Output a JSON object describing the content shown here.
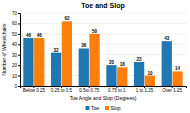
{
  "chart_data": {
    "type": "bar",
    "title": "Toe and Slop",
    "xlabel": "Toe Angle and Slop (Degrees)",
    "ylabel": "Number of Wheelchairs",
    "categories": [
      "Below 0.25",
      "0.25 to 0.5",
      "0.5to 0.75",
      "0.75 to 1",
      "1 to 1.25",
      "Over 1.25"
    ],
    "series": [
      {
        "name": "Toe",
        "values": [
          46,
          32,
          36,
          20,
          23,
          43
        ]
      },
      {
        "name": "Slop",
        "values": [
          46,
          62,
          50,
          18,
          10,
          14
        ]
      }
    ],
    "ylim": [
      0,
      70
    ],
    "yticks": [
      0,
      10,
      20,
      30,
      40,
      50,
      60,
      70
    ],
    "grid": true,
    "legend": "bottom",
    "data_labels": true
  }
}
